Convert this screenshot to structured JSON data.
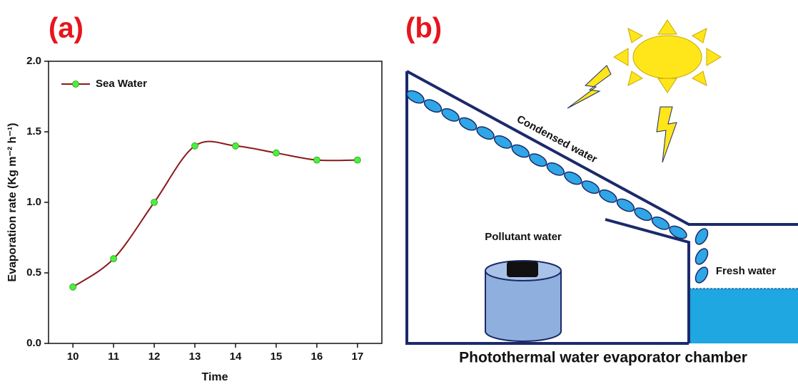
{
  "chart_data": {
    "type": "line",
    "title": "(a)",
    "x_label": "Time",
    "y_label": "Evaporation rate (Kg m⁻² h⁻¹)",
    "x": [
      10,
      11,
      12,
      13,
      14,
      15,
      16,
      17
    ],
    "series": [
      {
        "name": "Sea Water",
        "color": "#8b1a1a",
        "marker_color": "#4cef3c",
        "values": [
          0.4,
          0.6,
          1.0,
          1.4,
          1.4,
          1.35,
          1.3,
          1.3
        ]
      }
    ],
    "xlim": [
      9.4,
      17.6
    ],
    "xticks": [
      10,
      11,
      12,
      13,
      14,
      15,
      16,
      17
    ],
    "ylim": [
      0,
      2.0
    ],
    "yticks": [
      {
        "value": 0,
        "label": "0.0"
      },
      0.5,
      {
        "value": 1.0,
        "label": "1.0"
      },
      1.5,
      {
        "value": 2.0,
        "label": "2.0"
      }
    ],
    "legend": "upper left",
    "smooth": true
  },
  "diagram": {
    "label": "(b)",
    "roof_label": "Condensed water",
    "source_label": "Pollutant water",
    "output_label": "Fresh water",
    "caption": "Photothermal water evaporator chamber"
  }
}
